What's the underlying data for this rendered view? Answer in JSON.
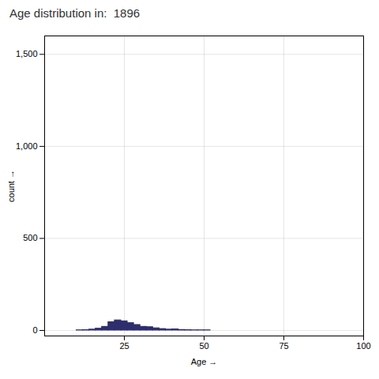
{
  "chart_data": {
    "type": "histogram",
    "title": "Age distribution in:  1896",
    "xlabel": "Age",
    "ylabel": "count",
    "bins": [
      10,
      12,
      14,
      16,
      18,
      20,
      22,
      24,
      26,
      28,
      30,
      32,
      34,
      36,
      38,
      40,
      42,
      44,
      46,
      48,
      50,
      52,
      54,
      56,
      58,
      60,
      62,
      64,
      66,
      68,
      70
    ],
    "values": [
      1,
      2,
      5,
      10,
      20,
      45,
      55,
      50,
      40,
      30,
      20,
      18,
      12,
      8,
      5,
      6,
      3,
      2,
      1,
      1,
      1,
      0,
      0,
      0,
      0,
      0,
      0,
      0,
      0,
      0
    ],
    "color": "#2e2e6e",
    "xlim": [
      0,
      100
    ],
    "ylim": [
      -30,
      1600
    ],
    "xticks": [
      25,
      50,
      75,
      100
    ],
    "yticks": [
      0,
      500,
      1000,
      1500
    ],
    "grid": true
  }
}
